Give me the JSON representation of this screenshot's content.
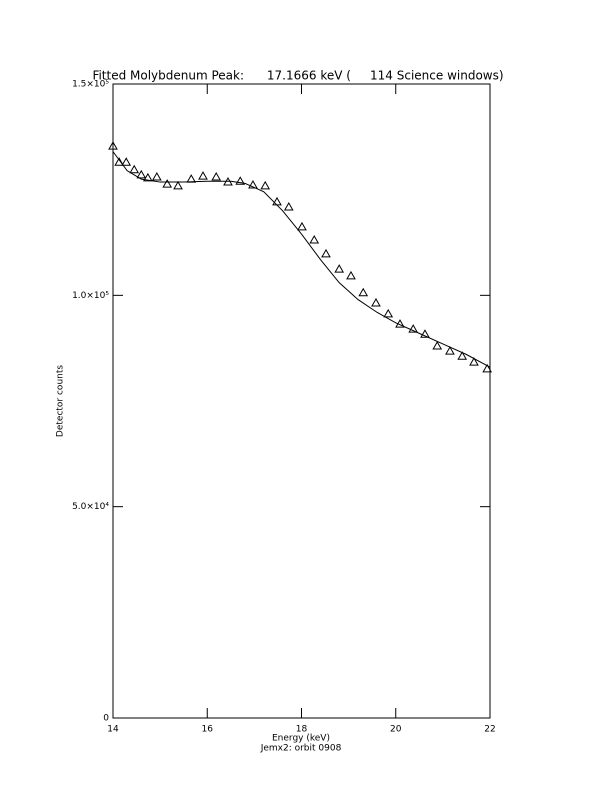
{
  "chart_data": {
    "type": "scatter",
    "title": "Fitted Molybdenum Peak:      17.1666 keV (     114 Science windows)",
    "x_label": "Energy (keV)",
    "subtitle": "Jemx2: orbit 0908",
    "y_label": "Detector counts",
    "xlim": [
      14,
      22
    ],
    "xticks": [
      14,
      16,
      18,
      20,
      22
    ],
    "ylim": [
      0,
      150000
    ],
    "yticks": [
      0,
      {
        "value": 50000,
        "label": "5.0×10⁴"
      },
      {
        "value": 100000,
        "label": "1.0×10⁵"
      },
      {
        "value": 150000,
        "label": "1.5×10⁵"
      }
    ],
    "series": [
      {
        "type": "scatter",
        "marker": "triangle",
        "color": "#000000",
        "x": [
          14.0,
          14.13,
          14.28,
          14.45,
          14.6,
          14.74,
          14.93,
          15.15,
          15.38,
          15.66,
          15.91,
          16.19,
          16.44,
          16.7,
          16.97,
          17.23,
          17.48,
          17.73,
          18.01,
          18.27,
          18.52,
          18.8,
          19.05,
          19.31,
          19.58,
          19.84,
          20.09,
          20.37,
          20.62,
          20.88,
          21.15,
          21.41,
          21.66,
          21.94
        ],
        "values": [
          135300,
          131500,
          131500,
          129700,
          128500,
          127800,
          128000,
          126300,
          125900,
          127500,
          128200,
          128000,
          126800,
          127000,
          126100,
          125900,
          122100,
          120900,
          116200,
          113100,
          109800,
          106200,
          104600,
          100600,
          98200,
          95600,
          93200,
          92000,
          90800,
          88000,
          86800,
          85600,
          84200,
          82600
        ]
      },
      {
        "type": "line",
        "color": "#000000",
        "x": [
          14.0,
          14.3,
          14.6,
          15.0,
          15.5,
          16.0,
          16.5,
          16.8,
          17.2,
          17.6,
          18.0,
          18.4,
          18.8,
          19.2,
          19.6,
          20.0,
          20.5,
          21.0,
          21.5,
          22.0
        ],
        "values": [
          134000,
          129500,
          127500,
          126800,
          126800,
          127000,
          127000,
          126500,
          124500,
          120000,
          114500,
          108500,
          103000,
          99000,
          96000,
          93500,
          91000,
          88500,
          86000,
          83000
        ]
      }
    ]
  }
}
